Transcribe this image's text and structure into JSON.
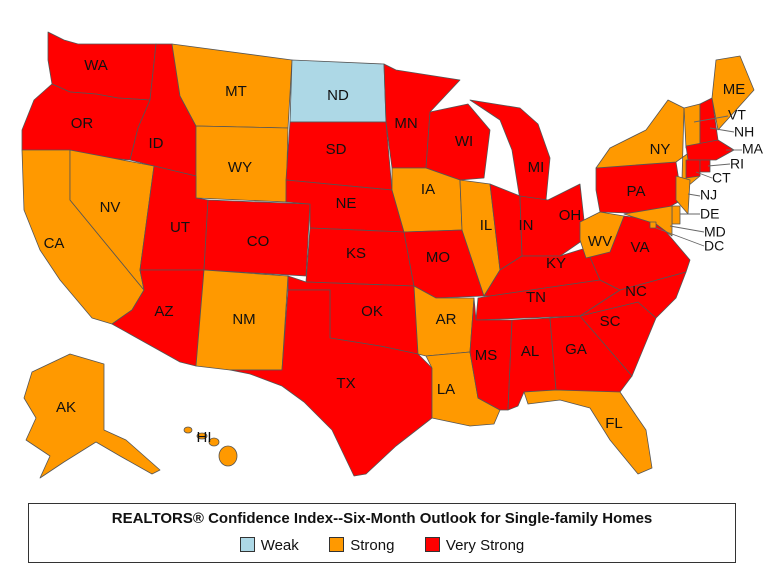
{
  "colors": {
    "weak": "#add8e6",
    "strong": "#ff9900",
    "very_strong": "#ff0000"
  },
  "states": {
    "WA": {
      "label": "WA",
      "rating": "very_strong"
    },
    "OR": {
      "label": "OR",
      "rating": "very_strong"
    },
    "CA": {
      "label": "CA",
      "rating": "strong"
    },
    "NV": {
      "label": "NV",
      "rating": "strong"
    },
    "ID": {
      "label": "ID",
      "rating": "very_strong"
    },
    "MT": {
      "label": "MT",
      "rating": "strong"
    },
    "WY": {
      "label": "WY",
      "rating": "strong"
    },
    "UT": {
      "label": "UT",
      "rating": "very_strong"
    },
    "AZ": {
      "label": "AZ",
      "rating": "very_strong"
    },
    "CO": {
      "label": "CO",
      "rating": "very_strong"
    },
    "NM": {
      "label": "NM",
      "rating": "strong"
    },
    "ND": {
      "label": "ND",
      "rating": "weak"
    },
    "SD": {
      "label": "SD",
      "rating": "very_strong"
    },
    "NE": {
      "label": "NE",
      "rating": "very_strong"
    },
    "KS": {
      "label": "KS",
      "rating": "very_strong"
    },
    "OK": {
      "label": "OK",
      "rating": "very_strong"
    },
    "TX": {
      "label": "TX",
      "rating": "very_strong"
    },
    "MN": {
      "label": "MN",
      "rating": "very_strong"
    },
    "IA": {
      "label": "IA",
      "rating": "strong"
    },
    "MO": {
      "label": "MO",
      "rating": "very_strong"
    },
    "AR": {
      "label": "AR",
      "rating": "strong"
    },
    "LA": {
      "label": "LA",
      "rating": "strong"
    },
    "WI": {
      "label": "WI",
      "rating": "very_strong"
    },
    "IL": {
      "label": "IL",
      "rating": "strong"
    },
    "MI": {
      "label": "MI",
      "rating": "very_strong"
    },
    "IN": {
      "label": "IN",
      "rating": "very_strong"
    },
    "OH": {
      "label": "OH",
      "rating": "very_strong"
    },
    "KY": {
      "label": "KY",
      "rating": "very_strong"
    },
    "TN": {
      "label": "TN",
      "rating": "very_strong"
    },
    "MS": {
      "label": "MS",
      "rating": "very_strong"
    },
    "AL": {
      "label": "AL",
      "rating": "very_strong"
    },
    "GA": {
      "label": "GA",
      "rating": "very_strong"
    },
    "FL": {
      "label": "FL",
      "rating": "strong"
    },
    "SC": {
      "label": "SC",
      "rating": "very_strong"
    },
    "NC": {
      "label": "NC",
      "rating": "very_strong"
    },
    "VA": {
      "label": "VA",
      "rating": "very_strong"
    },
    "WV": {
      "label": "WV",
      "rating": "strong"
    },
    "PA": {
      "label": "PA",
      "rating": "very_strong"
    },
    "NY": {
      "label": "NY",
      "rating": "strong"
    },
    "ME": {
      "label": "ME",
      "rating": "strong"
    },
    "VT": {
      "label": "VT",
      "rating": "strong"
    },
    "NH": {
      "label": "NH",
      "rating": "very_strong"
    },
    "MA": {
      "label": "MA",
      "rating": "very_strong"
    },
    "RI": {
      "label": "RI",
      "rating": "very_strong"
    },
    "CT": {
      "label": "CT",
      "rating": "very_strong"
    },
    "NJ": {
      "label": "NJ",
      "rating": "strong"
    },
    "DE": {
      "label": "DE",
      "rating": "strong"
    },
    "MD": {
      "label": "MD",
      "rating": "strong"
    },
    "DC": {
      "label": "DC",
      "rating": "strong"
    },
    "AK": {
      "label": "AK",
      "rating": "strong"
    },
    "HI": {
      "label": "HI",
      "rating": "strong"
    }
  },
  "legend": {
    "title": "REALTORS® Confidence Index--Six-Month Outlook for Single-family Homes",
    "items": [
      {
        "label": "Weak",
        "rating": "weak"
      },
      {
        "label": "Strong",
        "rating": "strong"
      },
      {
        "label": "Very Strong",
        "rating": "very_strong"
      }
    ]
  }
}
